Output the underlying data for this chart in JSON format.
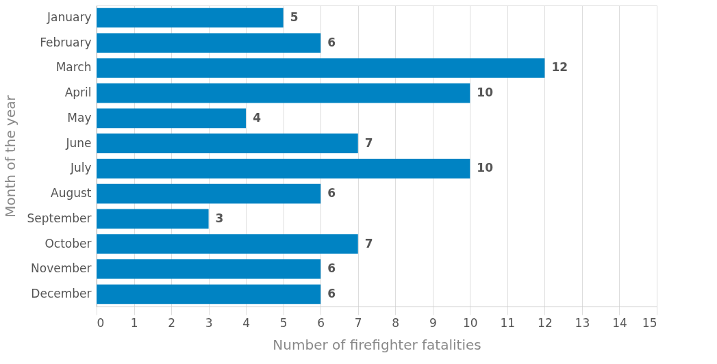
{
  "chart_data": {
    "type": "bar",
    "orientation": "horizontal",
    "categories": [
      "January",
      "February",
      "March",
      "April",
      "May",
      "June",
      "July",
      "August",
      "September",
      "October",
      "November",
      "December"
    ],
    "values": [
      5,
      6,
      12,
      10,
      4,
      7,
      10,
      6,
      3,
      7,
      6,
      6
    ],
    "color": "#0083c3",
    "xlim": [
      0,
      15
    ],
    "xticks": [
      0,
      1,
      2,
      3,
      4,
      5,
      6,
      7,
      8,
      9,
      10,
      11,
      12,
      13,
      14,
      15
    ],
    "xlabel": "Number of firefighter fatalities",
    "ylabel": "Month of the year",
    "data_labels": true,
    "grid": "x"
  }
}
